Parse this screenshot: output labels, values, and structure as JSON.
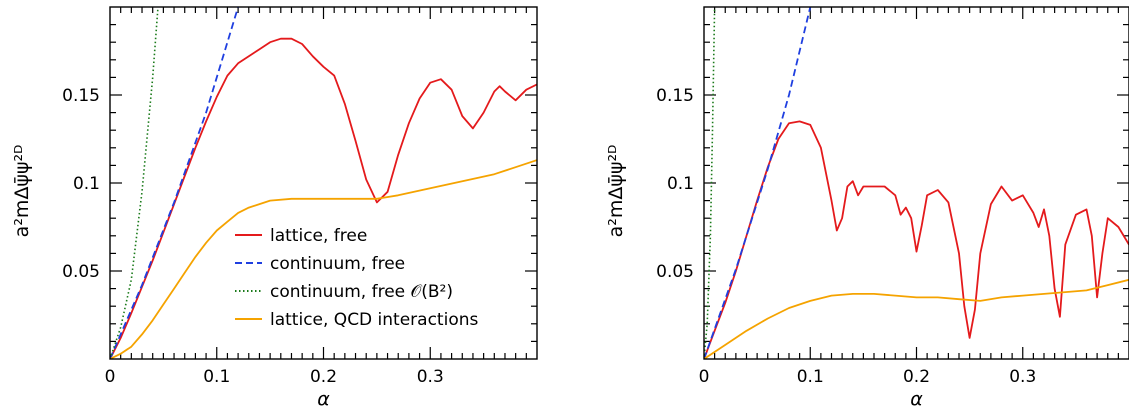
{
  "chart_data": [
    {
      "type": "line",
      "panel": "left",
      "xlabel": "α",
      "ylabel": "a²mΔψ̄ψ²ᴰ",
      "xlim": [
        0,
        0.4
      ],
      "ylim": [
        0,
        0.2
      ],
      "xticks": [
        "0",
        "0.1",
        "0.2",
        "0.3"
      ],
      "yticks": [
        "0.05",
        "0.1",
        "0.15"
      ],
      "legend": {
        "placement": "bottom-right",
        "entries": [
          {
            "label": "lattice, free",
            "series": 0
          },
          {
            "label": "continuum, free",
            "series": 1
          },
          {
            "label": "continuum, free 𝒪(B²)",
            "series": 2
          },
          {
            "label": "lattice, QCD interactions",
            "series": 3
          }
        ]
      },
      "series": [
        {
          "name": "lattice, free",
          "color": "#e41a1c",
          "style": "solid",
          "points": [
            [
              0,
              0
            ],
            [
              0.01,
              0.012
            ],
            [
              0.02,
              0.026
            ],
            [
              0.03,
              0.041
            ],
            [
              0.04,
              0.056
            ],
            [
              0.05,
              0.072
            ],
            [
              0.06,
              0.088
            ],
            [
              0.07,
              0.104
            ],
            [
              0.08,
              0.12
            ],
            [
              0.09,
              0.135
            ],
            [
              0.1,
              0.149
            ],
            [
              0.11,
              0.161
            ],
            [
              0.12,
              0.168
            ],
            [
              0.13,
              0.172
            ],
            [
              0.14,
              0.176
            ],
            [
              0.15,
              0.18
            ],
            [
              0.16,
              0.182
            ],
            [
              0.17,
              0.182
            ],
            [
              0.18,
              0.179
            ],
            [
              0.19,
              0.172
            ],
            [
              0.2,
              0.166
            ],
            [
              0.21,
              0.161
            ],
            [
              0.22,
              0.145
            ],
            [
              0.23,
              0.124
            ],
            [
              0.24,
              0.102
            ],
            [
              0.25,
              0.089
            ],
            [
              0.26,
              0.095
            ],
            [
              0.27,
              0.116
            ],
            [
              0.28,
              0.134
            ],
            [
              0.29,
              0.148
            ],
            [
              0.3,
              0.157
            ],
            [
              0.31,
              0.159
            ],
            [
              0.32,
              0.153
            ],
            [
              0.33,
              0.138
            ],
            [
              0.34,
              0.131
            ],
            [
              0.35,
              0.14
            ],
            [
              0.36,
              0.152
            ],
            [
              0.365,
              0.155
            ],
            [
              0.37,
              0.152
            ],
            [
              0.38,
              0.147
            ],
            [
              0.39,
              0.153
            ],
            [
              0.4,
              0.156
            ]
          ]
        },
        {
          "name": "continuum, free",
          "color": "#1f3fe0",
          "style": "dashed",
          "points": [
            [
              0,
              0
            ],
            [
              0.03,
              0.042
            ],
            [
              0.06,
              0.089
            ],
            [
              0.09,
              0.14
            ],
            [
              0.12,
              0.2
            ]
          ]
        },
        {
          "name": "continuum, free 𝒪(B²)",
          "color": "#1a7a1a",
          "style": "dotted",
          "points": [
            [
              0,
              0
            ],
            [
              0.01,
              0.018
            ],
            [
              0.02,
              0.045
            ],
            [
              0.03,
              0.095
            ],
            [
              0.04,
              0.16
            ],
            [
              0.045,
              0.2
            ]
          ]
        },
        {
          "name": "lattice, QCD interactions",
          "color": "#f5a300",
          "style": "solid",
          "points": [
            [
              0,
              0
            ],
            [
              0.01,
              0.003
            ],
            [
              0.02,
              0.007
            ],
            [
              0.03,
              0.014
            ],
            [
              0.04,
              0.022
            ],
            [
              0.05,
              0.031
            ],
            [
              0.06,
              0.04
            ],
            [
              0.07,
              0.049
            ],
            [
              0.08,
              0.058
            ],
            [
              0.09,
              0.066
            ],
            [
              0.1,
              0.073
            ],
            [
              0.11,
              0.078
            ],
            [
              0.12,
              0.083
            ],
            [
              0.13,
              0.086
            ],
            [
              0.14,
              0.088
            ],
            [
              0.15,
              0.09
            ],
            [
              0.17,
              0.091
            ],
            [
              0.2,
              0.091
            ],
            [
              0.23,
              0.091
            ],
            [
              0.25,
              0.091
            ],
            [
              0.27,
              0.093
            ],
            [
              0.3,
              0.097
            ],
            [
              0.33,
              0.101
            ],
            [
              0.36,
              0.105
            ],
            [
              0.38,
              0.109
            ],
            [
              0.4,
              0.113
            ]
          ]
        }
      ]
    },
    {
      "type": "line",
      "panel": "right",
      "xlabel": "α",
      "ylabel": "a²mΔψ̄ψ²ᴰ",
      "xlim": [
        0,
        0.4
      ],
      "ylim": [
        0,
        0.2
      ],
      "xticks": [
        "0",
        "0.1",
        "0.2",
        "0.3"
      ],
      "yticks": [
        "0.05",
        "0.1",
        "0.15"
      ],
      "series": [
        {
          "name": "lattice, free",
          "color": "#e41a1c",
          "style": "solid",
          "points": [
            [
              0,
              0
            ],
            [
              0.01,
              0.016
            ],
            [
              0.02,
              0.032
            ],
            [
              0.03,
              0.05
            ],
            [
              0.04,
              0.07
            ],
            [
              0.05,
              0.09
            ],
            [
              0.06,
              0.109
            ],
            [
              0.07,
              0.125
            ],
            [
              0.08,
              0.134
            ],
            [
              0.09,
              0.135
            ],
            [
              0.1,
              0.133
            ],
            [
              0.11,
              0.12
            ],
            [
              0.12,
              0.09
            ],
            [
              0.125,
              0.073
            ],
            [
              0.13,
              0.08
            ],
            [
              0.135,
              0.098
            ],
            [
              0.14,
              0.101
            ],
            [
              0.145,
              0.093
            ],
            [
              0.15,
              0.098
            ],
            [
              0.16,
              0.098
            ],
            [
              0.17,
              0.098
            ],
            [
              0.18,
              0.093
            ],
            [
              0.185,
              0.082
            ],
            [
              0.19,
              0.086
            ],
            [
              0.195,
              0.08
            ],
            [
              0.2,
              0.061
            ],
            [
              0.205,
              0.076
            ],
            [
              0.21,
              0.093
            ],
            [
              0.22,
              0.096
            ],
            [
              0.23,
              0.089
            ],
            [
              0.24,
              0.06
            ],
            [
              0.245,
              0.03
            ],
            [
              0.25,
              0.012
            ],
            [
              0.255,
              0.028
            ],
            [
              0.26,
              0.06
            ],
            [
              0.27,
              0.088
            ],
            [
              0.28,
              0.098
            ],
            [
              0.29,
              0.09
            ],
            [
              0.3,
              0.093
            ],
            [
              0.31,
              0.083
            ],
            [
              0.315,
              0.075
            ],
            [
              0.32,
              0.085
            ],
            [
              0.325,
              0.07
            ],
            [
              0.33,
              0.04
            ],
            [
              0.335,
              0.024
            ],
            [
              0.34,
              0.065
            ],
            [
              0.35,
              0.082
            ],
            [
              0.36,
              0.085
            ],
            [
              0.365,
              0.07
            ],
            [
              0.37,
              0.035
            ],
            [
              0.375,
              0.06
            ],
            [
              0.38,
              0.08
            ],
            [
              0.39,
              0.075
            ],
            [
              0.4,
              0.065
            ]
          ]
        },
        {
          "name": "continuum, free",
          "color": "#1f3fe0",
          "style": "dashed",
          "points": [
            [
              0,
              0
            ],
            [
              0.03,
              0.051
            ],
            [
              0.06,
              0.108
            ],
            [
              0.08,
              0.15
            ],
            [
              0.1,
              0.2
            ]
          ]
        },
        {
          "name": "continuum, free 𝒪(B²)",
          "color": "#1a7a1a",
          "style": "dotted",
          "points": [
            [
              0,
              0
            ],
            [
              0.003,
              0.02
            ],
            [
              0.006,
              0.07
            ],
            [
              0.008,
              0.13
            ],
            [
              0.01,
              0.2
            ]
          ]
        },
        {
          "name": "lattice, QCD interactions",
          "color": "#f5a300",
          "style": "solid",
          "points": [
            [
              0,
              0
            ],
            [
              0.02,
              0.008
            ],
            [
              0.04,
              0.016
            ],
            [
              0.06,
              0.023
            ],
            [
              0.08,
              0.029
            ],
            [
              0.1,
              0.033
            ],
            [
              0.12,
              0.036
            ],
            [
              0.14,
              0.037
            ],
            [
              0.16,
              0.037
            ],
            [
              0.18,
              0.036
            ],
            [
              0.2,
              0.035
            ],
            [
              0.22,
              0.035
            ],
            [
              0.24,
              0.034
            ],
            [
              0.26,
              0.033
            ],
            [
              0.28,
              0.035
            ],
            [
              0.3,
              0.036
            ],
            [
              0.32,
              0.037
            ],
            [
              0.34,
              0.038
            ],
            [
              0.36,
              0.039
            ],
            [
              0.38,
              0.042
            ],
            [
              0.4,
              0.045
            ]
          ]
        }
      ]
    }
  ]
}
